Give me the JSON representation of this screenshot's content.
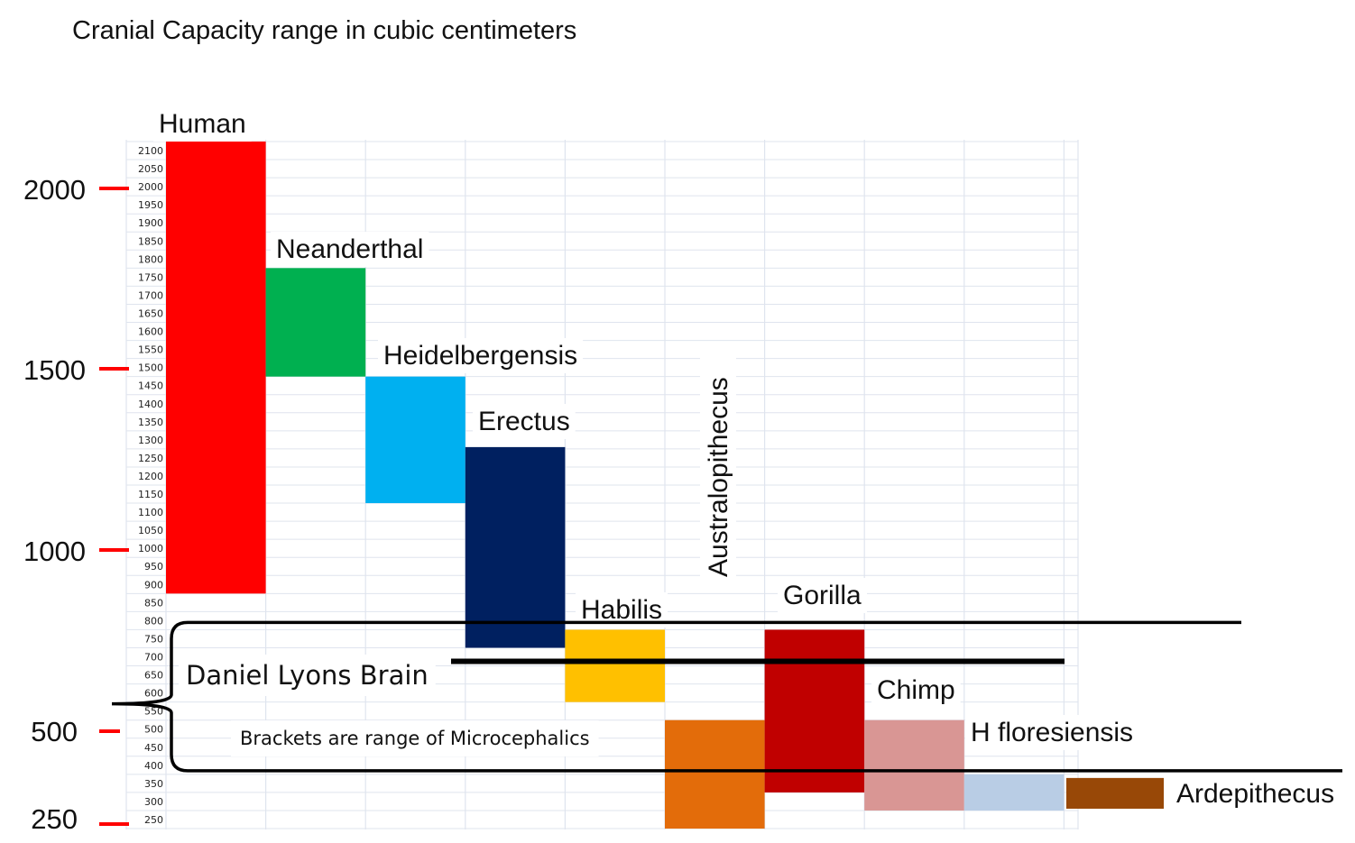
{
  "chart_data": {
    "type": "bar",
    "title": "Cranial Capacity range in cubic centimeters",
    "xlabel": "",
    "ylabel": "",
    "ylim": [
      250,
      2100
    ],
    "major_ticks": [
      "2000",
      "1500",
      "1000",
      "500",
      "250"
    ],
    "minor_ticks": [
      "2100",
      "2050",
      "2000",
      "1950",
      "1900",
      "1850",
      "1800",
      "1750",
      "1700",
      "1650",
      "1600",
      "1550",
      "1500",
      "1450",
      "1400",
      "1350",
      "1300",
      "1250",
      "1200",
      "1150",
      "1100",
      "1050",
      "1000",
      "950",
      "900",
      "850",
      "800",
      "750",
      "700",
      "650",
      "600",
      "550",
      "500",
      "450",
      "400",
      "350",
      "300",
      "250"
    ],
    "series": [
      {
        "label": "Human",
        "low": 875,
        "high": 2125,
        "color": "#ff0000"
      },
      {
        "label": "Neanderthal",
        "low": 1475,
        "high": 1775,
        "color": "#00b050"
      },
      {
        "label": "Heidelbergensis",
        "low": 1125,
        "high": 1475,
        "color": "#00b0f0"
      },
      {
        "label": "Erectus",
        "low": 725,
        "high": 1280,
        "color": "#002060"
      },
      {
        "label": "Habilis",
        "low": 575,
        "high": 775,
        "color": "#ffc000"
      },
      {
        "label": "Australopithecus",
        "low": 225,
        "high": 525,
        "color": "#e36c0a"
      },
      {
        "label": "Gorilla",
        "low": 325,
        "high": 775,
        "color": "#c00000"
      },
      {
        "label": "Chimp",
        "low": 275,
        "high": 525,
        "color": "#d99694"
      },
      {
        "label": "H floresiensis",
        "low": 275,
        "high": 375,
        "color": "#b9cde5"
      },
      {
        "label": "Ardepithecus",
        "low": 280,
        "high": 365,
        "color": "#984807"
      }
    ],
    "annotations": {
      "marker_label": "Daniel Lyons Brain",
      "marker_value": 675,
      "bracket_note": "Brackets are range of Microcephalics",
      "bracket_range": [
        400,
        800
      ]
    }
  },
  "colors": {
    "tick_marker": "#ff0000",
    "grid": "#dfe4ee",
    "bracket": "#000000"
  }
}
